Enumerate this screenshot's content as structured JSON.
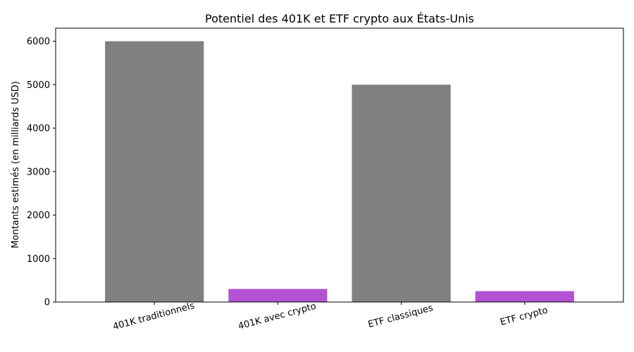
{
  "chart_data": {
    "type": "bar",
    "title": "Potentiel des 401K et ETF crypto aux États-Unis",
    "xlabel": "",
    "ylabel": "Montants estimés (en milliards USD)",
    "categories": [
      "401K traditionnels",
      "401K avec crypto",
      "ETF classiques",
      "ETF crypto"
    ],
    "values": [
      6000,
      300,
      5000,
      250
    ],
    "colors": [
      "#808080",
      "#b452d4",
      "#808080",
      "#b452d4"
    ],
    "ylim": [
      0,
      6300
    ],
    "yticks": [
      0,
      1000,
      2000,
      3000,
      4000,
      5000,
      6000
    ],
    "grid": false,
    "legend": "none"
  }
}
